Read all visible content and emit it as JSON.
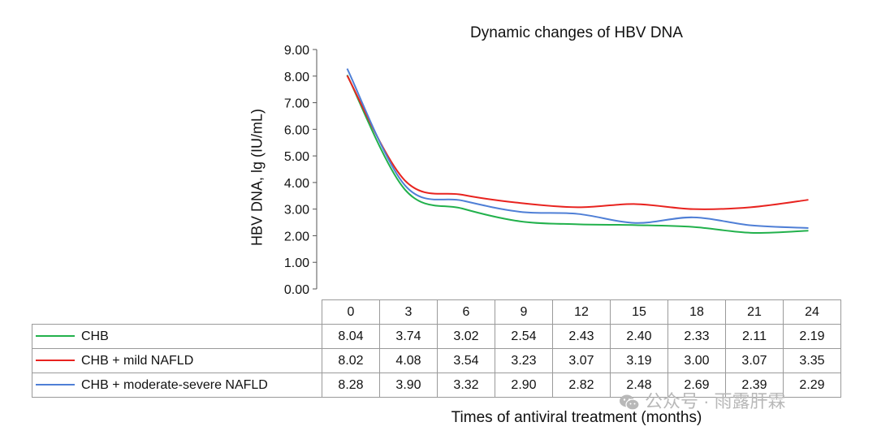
{
  "chart_data": {
    "type": "line",
    "title": "Dynamic changes of HBV DNA",
    "xlabel": "Times of antiviral treatment (months)",
    "ylabel": "HBV DNA, lg (IU/mL)",
    "categories": [
      "0",
      "3",
      "6",
      "9",
      "12",
      "15",
      "18",
      "21",
      "24"
    ],
    "ylim": [
      0,
      9
    ],
    "yticks": [
      "0.00",
      "1.00",
      "2.00",
      "3.00",
      "4.00",
      "5.00",
      "6.00",
      "7.00",
      "8.00",
      "9.00"
    ],
    "series": [
      {
        "name": "CHB",
        "color": "#22b14c",
        "values": [
          8.04,
          3.74,
          3.02,
          2.54,
          2.43,
          2.4,
          2.33,
          2.11,
          2.19
        ],
        "labels": [
          "8.04",
          "3.74",
          "3.02",
          "2.54",
          "2.43",
          "2.40",
          "2.33",
          "2.11",
          "2.19"
        ]
      },
      {
        "name": "CHB + mild NAFLD",
        "color": "#e8231f",
        "values": [
          8.02,
          4.08,
          3.54,
          3.23,
          3.07,
          3.19,
          3.0,
          3.07,
          3.35
        ],
        "labels": [
          "8.02",
          "4.08",
          "3.54",
          "3.23",
          "3.07",
          "3.19",
          "3.00",
          "3.07",
          "3.35"
        ]
      },
      {
        "name": "CHB + moderate-severe NAFLD",
        "color": "#4f7fd6",
        "values": [
          8.28,
          3.9,
          3.32,
          2.9,
          2.82,
          2.48,
          2.69,
          2.39,
          2.29
        ],
        "labels": [
          "8.28",
          "3.90",
          "3.32",
          "2.90",
          "2.82",
          "2.48",
          "2.69",
          "2.39",
          "2.29"
        ]
      }
    ]
  },
  "watermark": {
    "text": "公众号 · 雨露肝霖",
    "icon": "wechat-icon"
  }
}
